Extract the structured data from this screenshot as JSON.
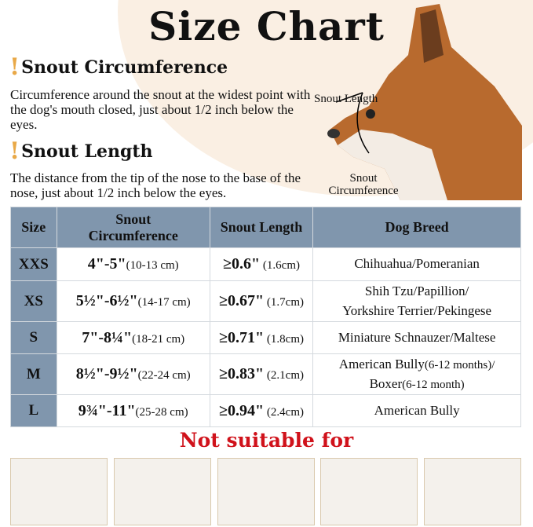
{
  "title": "Size Chart",
  "sections": [
    {
      "heading": "Snout Circumference",
      "text": "Circumference around the snout at the widest point with the dog's mouth closed, just about 1/2 inch below the eyes."
    },
    {
      "heading": "Snout Length",
      "text": "The distance from the tip of the nose to the base of the nose, just about 1/2 inch below the eyes."
    }
  ],
  "diagram": {
    "length_label": "Snout Length",
    "circ_label": "Snout Circumference"
  },
  "table": {
    "headers": [
      "Size",
      "Snout Circumference",
      "Snout Length",
      "Dog Breed"
    ],
    "rows": [
      {
        "size": "XXS",
        "circ": "4\"-5\"",
        "circ_cm": "(10-13 cm)",
        "len": "≥0.6\"",
        "len_cm": " (1.6cm)",
        "breed": "Chihuahua/Pomeranian",
        "breed_note": "",
        "breed2": "",
        "breed2_note": ""
      },
      {
        "size": "XS",
        "circ": "5½\"-6½\"",
        "circ_cm": "(14-17 cm)",
        "len": "≥0.67\"",
        "len_cm": " (1.7cm)",
        "breed": "Shih Tzu/Papillion/",
        "breed_note": "",
        "breed2": "Yorkshire Terrier/Pekingese",
        "breed2_note": ""
      },
      {
        "size": "S",
        "circ": "7\"-8¼\"",
        "circ_cm": "(18-21 cm)",
        "len": "≥0.71\"",
        "len_cm": " (1.8cm)",
        "breed": "Miniature Schnauzer/Maltese",
        "breed_note": "",
        "breed2": "",
        "breed2_note": ""
      },
      {
        "size": "M",
        "circ": "8½\"-9½\"",
        "circ_cm": "(22-24 cm)",
        "len": "≥0.83\"",
        "len_cm": " (2.1cm)",
        "breed": "American Bully",
        "breed_note": "(6-12 months)/",
        "breed2": "Boxer",
        "breed2_note": "(6-12 month)"
      },
      {
        "size": "L",
        "circ": "9¾\"-11\"",
        "circ_cm": "(25-28 cm)",
        "len": "≥0.94\"",
        "len_cm": " (2.4cm)",
        "breed": "American Bully",
        "breed_note": "",
        "breed2": "",
        "breed2_note": ""
      }
    ]
  },
  "not_suitable": "Not suitable for",
  "colors": {
    "header": "#8096ad",
    "warning": "#d0121b",
    "accent": "#e9a948",
    "background_blob": "#faefe3"
  }
}
